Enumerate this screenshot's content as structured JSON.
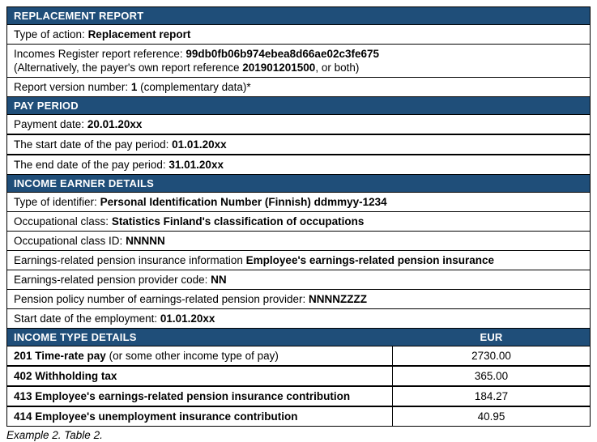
{
  "colors": {
    "header_bg": "#1f4e79",
    "header_text": "#ffffff",
    "border": "#000000",
    "row_bg": "#ffffff"
  },
  "sections": {
    "replacement_report": {
      "title": "REPLACEMENT REPORT",
      "type_of_action": {
        "label": "Type of action: ",
        "value": "Replacement report"
      },
      "report_reference": {
        "label": "Incomes Register report reference: ",
        "value": "99db0fb06b974ebea8d66ae02c3fe675",
        "alt_prefix": "(Alternatively, the payer's own report reference ",
        "alt_value": "201901201500",
        "alt_suffix": ", or both)"
      },
      "report_version": {
        "label": "Report version number: ",
        "value": "1",
        "suffix": " (complementary data)*"
      }
    },
    "pay_period": {
      "title": "PAY PERIOD",
      "payment_date": {
        "label": "Payment date: ",
        "value": "20.01.20xx"
      },
      "start_date": {
        "label": "The start date of the pay period: ",
        "value": "01.01.20xx"
      },
      "end_date": {
        "label": "The end date of the pay period: ",
        "value": "31.01.20xx"
      }
    },
    "income_earner": {
      "title": "INCOME EARNER DETAILS",
      "type_of_identifier": {
        "label": "Type of identifier: ",
        "value": "Personal Identification Number (Finnish) ddmmyy-1234"
      },
      "occupational_class": {
        "label": "Occupational class: ",
        "value": "Statistics Finland's classification of occupations"
      },
      "occupational_class_id": {
        "label": "Occupational class ID: ",
        "value": "NNNNN"
      },
      "pension_insurance_info": {
        "label": "Earnings-related pension insurance information ",
        "value": "Employee's earnings-related pension insurance"
      },
      "pension_provider_code": {
        "label": "Earnings-related pension provider code: ",
        "value": "NN"
      },
      "pension_policy_number": {
        "label": "Pension policy number of earnings-related pension provider: ",
        "value": "NNNNZZZZ"
      },
      "employment_start_date": {
        "label": "Start date of the employment: ",
        "value": "01.01.20xx"
      }
    },
    "income_type": {
      "title": "INCOME TYPE DETAILS",
      "currency_header": "EUR",
      "rows": [
        {
          "name": "201 Time-rate pay",
          "note": " (or some other income type of pay)",
          "amount": "2730.00"
        },
        {
          "name": "402 Withholding tax",
          "note": "",
          "amount": "365.00"
        },
        {
          "name": "413 Employee's earnings-related pension insurance contribution",
          "note": "",
          "amount": "184.27"
        },
        {
          "name": "414 Employee's unemployment insurance contribution",
          "note": "",
          "amount": "40.95"
        }
      ]
    }
  },
  "caption": "Example 2. Table 2."
}
